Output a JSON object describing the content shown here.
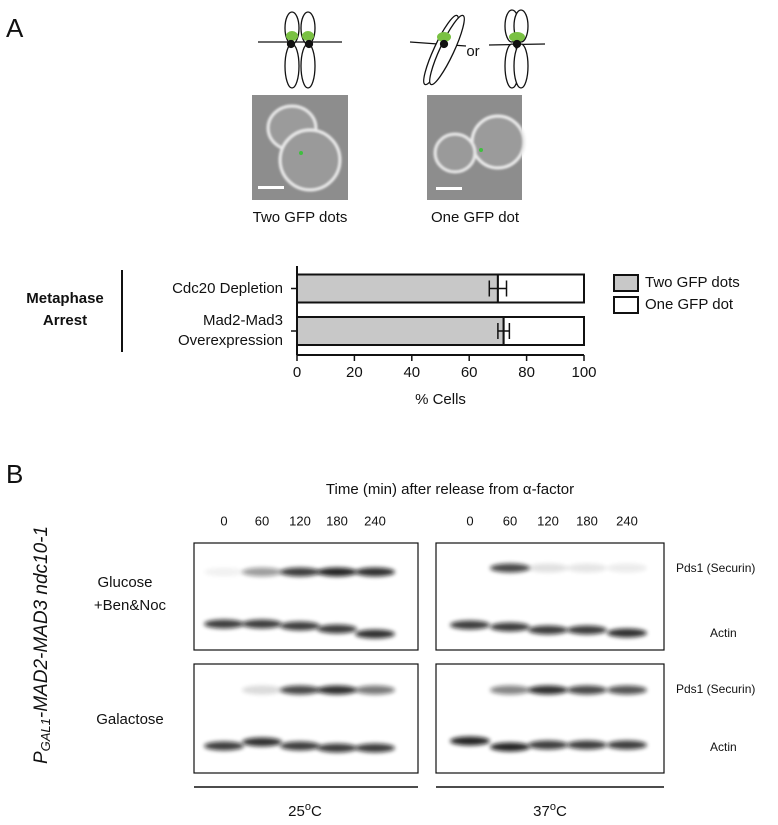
{
  "panel_a": {
    "label": "A",
    "or_text": "or",
    "captions": [
      "Two GFP dots",
      "One GFP dot"
    ],
    "group_label": "Metaphase Arrest"
  },
  "chart_data": {
    "type": "stacked-bar-horizontal",
    "categories": [
      "Cdc20 Depletion",
      "Mad2-Mad3 Overexpression"
    ],
    "series": [
      {
        "name": "Two GFP dots",
        "color": "#c8c8c8",
        "values": [
          70,
          72
        ],
        "errors": [
          3,
          2
        ]
      },
      {
        "name": "One GFP dot",
        "color": "#ffffff",
        "values": [
          30,
          28
        ]
      }
    ],
    "x_label": "% Cells",
    "xlim": [
      0,
      100
    ],
    "xticks": [
      0,
      20,
      40,
      60,
      80,
      100
    ],
    "legend": "right"
  },
  "panel_b": {
    "label": "B",
    "title": "Time (min) after release from α-factor",
    "times": [
      "0",
      "60",
      "120",
      "180",
      "240"
    ],
    "genotype": {
      "prefix": "P",
      "subscript": "GAL1",
      "rest": "-MAD2-MAD3 ndc10-1"
    },
    "conditions": [
      "Glucose",
      "+Ben&Noc",
      "Galactose"
    ],
    "bands": [
      "Pds1 (Securin)",
      "Actin"
    ],
    "temperatures": [
      {
        "value": "25",
        "superscript": "o",
        "unit": "C"
      },
      {
        "value": "37",
        "superscript": "o",
        "unit": "C"
      }
    ]
  }
}
